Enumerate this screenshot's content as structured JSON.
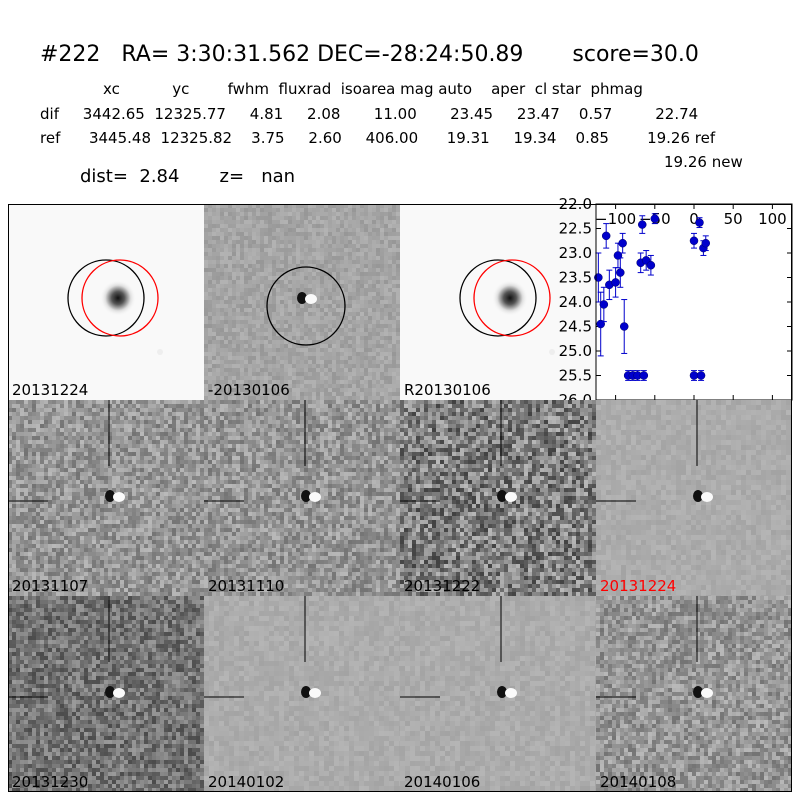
{
  "header": {
    "title": "#222   RA= 3:30:31.562 DEC=-28:24:50.89       score=30.0",
    "table_rows": [
      {
        "x": 103,
        "y": 88,
        "text": "xc           yc        fwhm  fluxrad  isoarea mag auto    aper  cl star  phmag"
      },
      {
        "x": 40,
        "y": 113,
        "text": "dif     3442.65  12325.77     4.81     2.08       11.00       23.45     23.47    0.57         22.74"
      },
      {
        "x": 40,
        "y": 137,
        "text": "ref      3445.48  12325.82    3.75     2.60     406.00      19.31     19.34    0.85        19.26 ref"
      },
      {
        "x": 664,
        "y": 161,
        "text": "19.26 new"
      }
    ],
    "dist_line": "dist=  2.84       z=   nan"
  },
  "panels": [
    {
      "label": "20131224",
      "style": "ref",
      "highlight": false
    },
    {
      "label": "-20130106",
      "style": "diffcircle",
      "highlight": false
    },
    {
      "label": "R20130106",
      "style": "ref",
      "highlight": false
    },
    {
      "label": "",
      "style": "chart",
      "highlight": false
    },
    {
      "label": "20131107",
      "style": "noisy",
      "highlight": false
    },
    {
      "label": "20131110",
      "style": "noisy",
      "highlight": false
    },
    {
      "label": "20131222",
      "style": "verynoisy",
      "highlight": false
    },
    {
      "label": "20131224",
      "style": "smooth",
      "highlight": true,
      "highlight_color": "#ff0000"
    },
    {
      "label": "20131230",
      "style": "noisydark",
      "highlight": false
    },
    {
      "label": "20140102",
      "style": "smooth",
      "highlight": false
    },
    {
      "label": "20140106",
      "style": "smooth",
      "highlight": false
    },
    {
      "label": "20140108",
      "style": "noisy",
      "highlight": false
    }
  ],
  "colors": {
    "marker": "#0000cc",
    "circle_red": "#ff0000",
    "circle_black": "#000000",
    "label_highlight": "#ff0000"
  },
  "chart_data": {
    "type": "scatter",
    "title": "",
    "xlabel": "",
    "ylabel": "",
    "xlim": [
      -125,
      125
    ],
    "ylim": [
      26.0,
      22.0
    ],
    "y_inverted": true,
    "xticks": [
      -100,
      -50,
      0,
      50,
      100
    ],
    "xtick_labels": [
      "−100",
      "−50",
      "0",
      "50",
      "100"
    ],
    "yticks": [
      22.0,
      22.5,
      23.0,
      23.5,
      24.0,
      24.5,
      25.0,
      25.5,
      26.0
    ],
    "ytick_labels": [
      "22.0",
      "22.5",
      "23.0",
      "23.5",
      "24.0",
      "24.5",
      "25.0",
      "25.5",
      "26.0"
    ],
    "grid": false,
    "series": [
      {
        "points": [
          {
            "x": -122,
            "y": 23.5,
            "err": 0.5
          },
          {
            "x": -119,
            "y": 24.45,
            "err": 0.65
          },
          {
            "x": -115,
            "y": 24.05,
            "err": 0.35
          },
          {
            "x": -112,
            "y": 22.65,
            "err": 0.25
          },
          {
            "x": -108,
            "y": 23.65,
            "err": 0.3
          },
          {
            "x": -100,
            "y": 23.6,
            "err": 0.3
          },
          {
            "x": -97,
            "y": 23.05,
            "err": 0.25
          },
          {
            "x": -94,
            "y": 23.4,
            "err": 0.3
          },
          {
            "x": -91,
            "y": 22.8,
            "err": 0.2
          },
          {
            "x": -89,
            "y": 24.5,
            "err": 0.55
          },
          {
            "x": -84,
            "y": 25.5,
            "err": 0.1
          },
          {
            "x": -78,
            "y": 25.5,
            "err": 0.1
          },
          {
            "x": -72,
            "y": 25.5,
            "err": 0.1
          },
          {
            "x": -68,
            "y": 23.2,
            "err": 0.2
          },
          {
            "x": -66,
            "y": 22.42,
            "err": 0.18
          },
          {
            "x": -64,
            "y": 25.5,
            "err": 0.1
          },
          {
            "x": -61,
            "y": 23.15,
            "err": 0.2
          },
          {
            "x": -55,
            "y": 23.25,
            "err": 0.2
          },
          {
            "x": -50,
            "y": 22.3,
            "err": 0.1
          },
          {
            "x": 0,
            "y": 22.75,
            "err": 0.15
          },
          {
            "x": 0,
            "y": 25.5,
            "err": 0.1
          },
          {
            "x": 7,
            "y": 22.38,
            "err": 0.1
          },
          {
            "x": 9,
            "y": 25.5,
            "err": 0.1
          },
          {
            "x": 12,
            "y": 22.9,
            "err": 0.15
          },
          {
            "x": 15,
            "y": 22.8,
            "err": 0.15
          }
        ]
      }
    ]
  }
}
